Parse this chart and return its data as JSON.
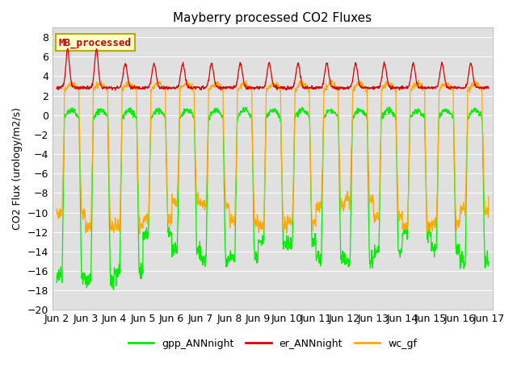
{
  "title": "Mayberry processed CO2 Fluxes",
  "ylabel": "CO2 Flux (urology/m2/s)",
  "ylim": [
    -20,
    9
  ],
  "yticks": [
    -20,
    -18,
    -16,
    -14,
    -12,
    -10,
    -8,
    -6,
    -4,
    -2,
    0,
    2,
    4,
    6,
    8
  ],
  "x_tick_labels": [
    "Jun 2",
    "Jun 3",
    "Jun 4",
    "Jun 5",
    "Jun 6",
    "Jun 7",
    "Jun 8",
    "Jun 9",
    "Jun 10",
    "Jun 11",
    "Jun 12",
    "Jun 13",
    "Jun 14",
    "Jun 15",
    "Jun 16",
    "Jun 17"
  ],
  "legend_labels": [
    "gpp_ANNnight",
    "er_ANNnight",
    "wc_gf"
  ],
  "legend_colors": [
    "#00ee00",
    "#dd0000",
    "#ffaa00"
  ],
  "inset_label": "MB_processed",
  "inset_label_color": "#cc0000",
  "inset_bg": "#ffffcc",
  "inset_border": "#bbaa00",
  "gpp_color": "#00ee00",
  "er_color": "#dd0000",
  "wc_color": "#ffaa00",
  "plot_bg": "#e0e0e0",
  "grid_color": "#ffffff",
  "line_width": 0.9,
  "n_days": 15,
  "pts_per_day": 96
}
